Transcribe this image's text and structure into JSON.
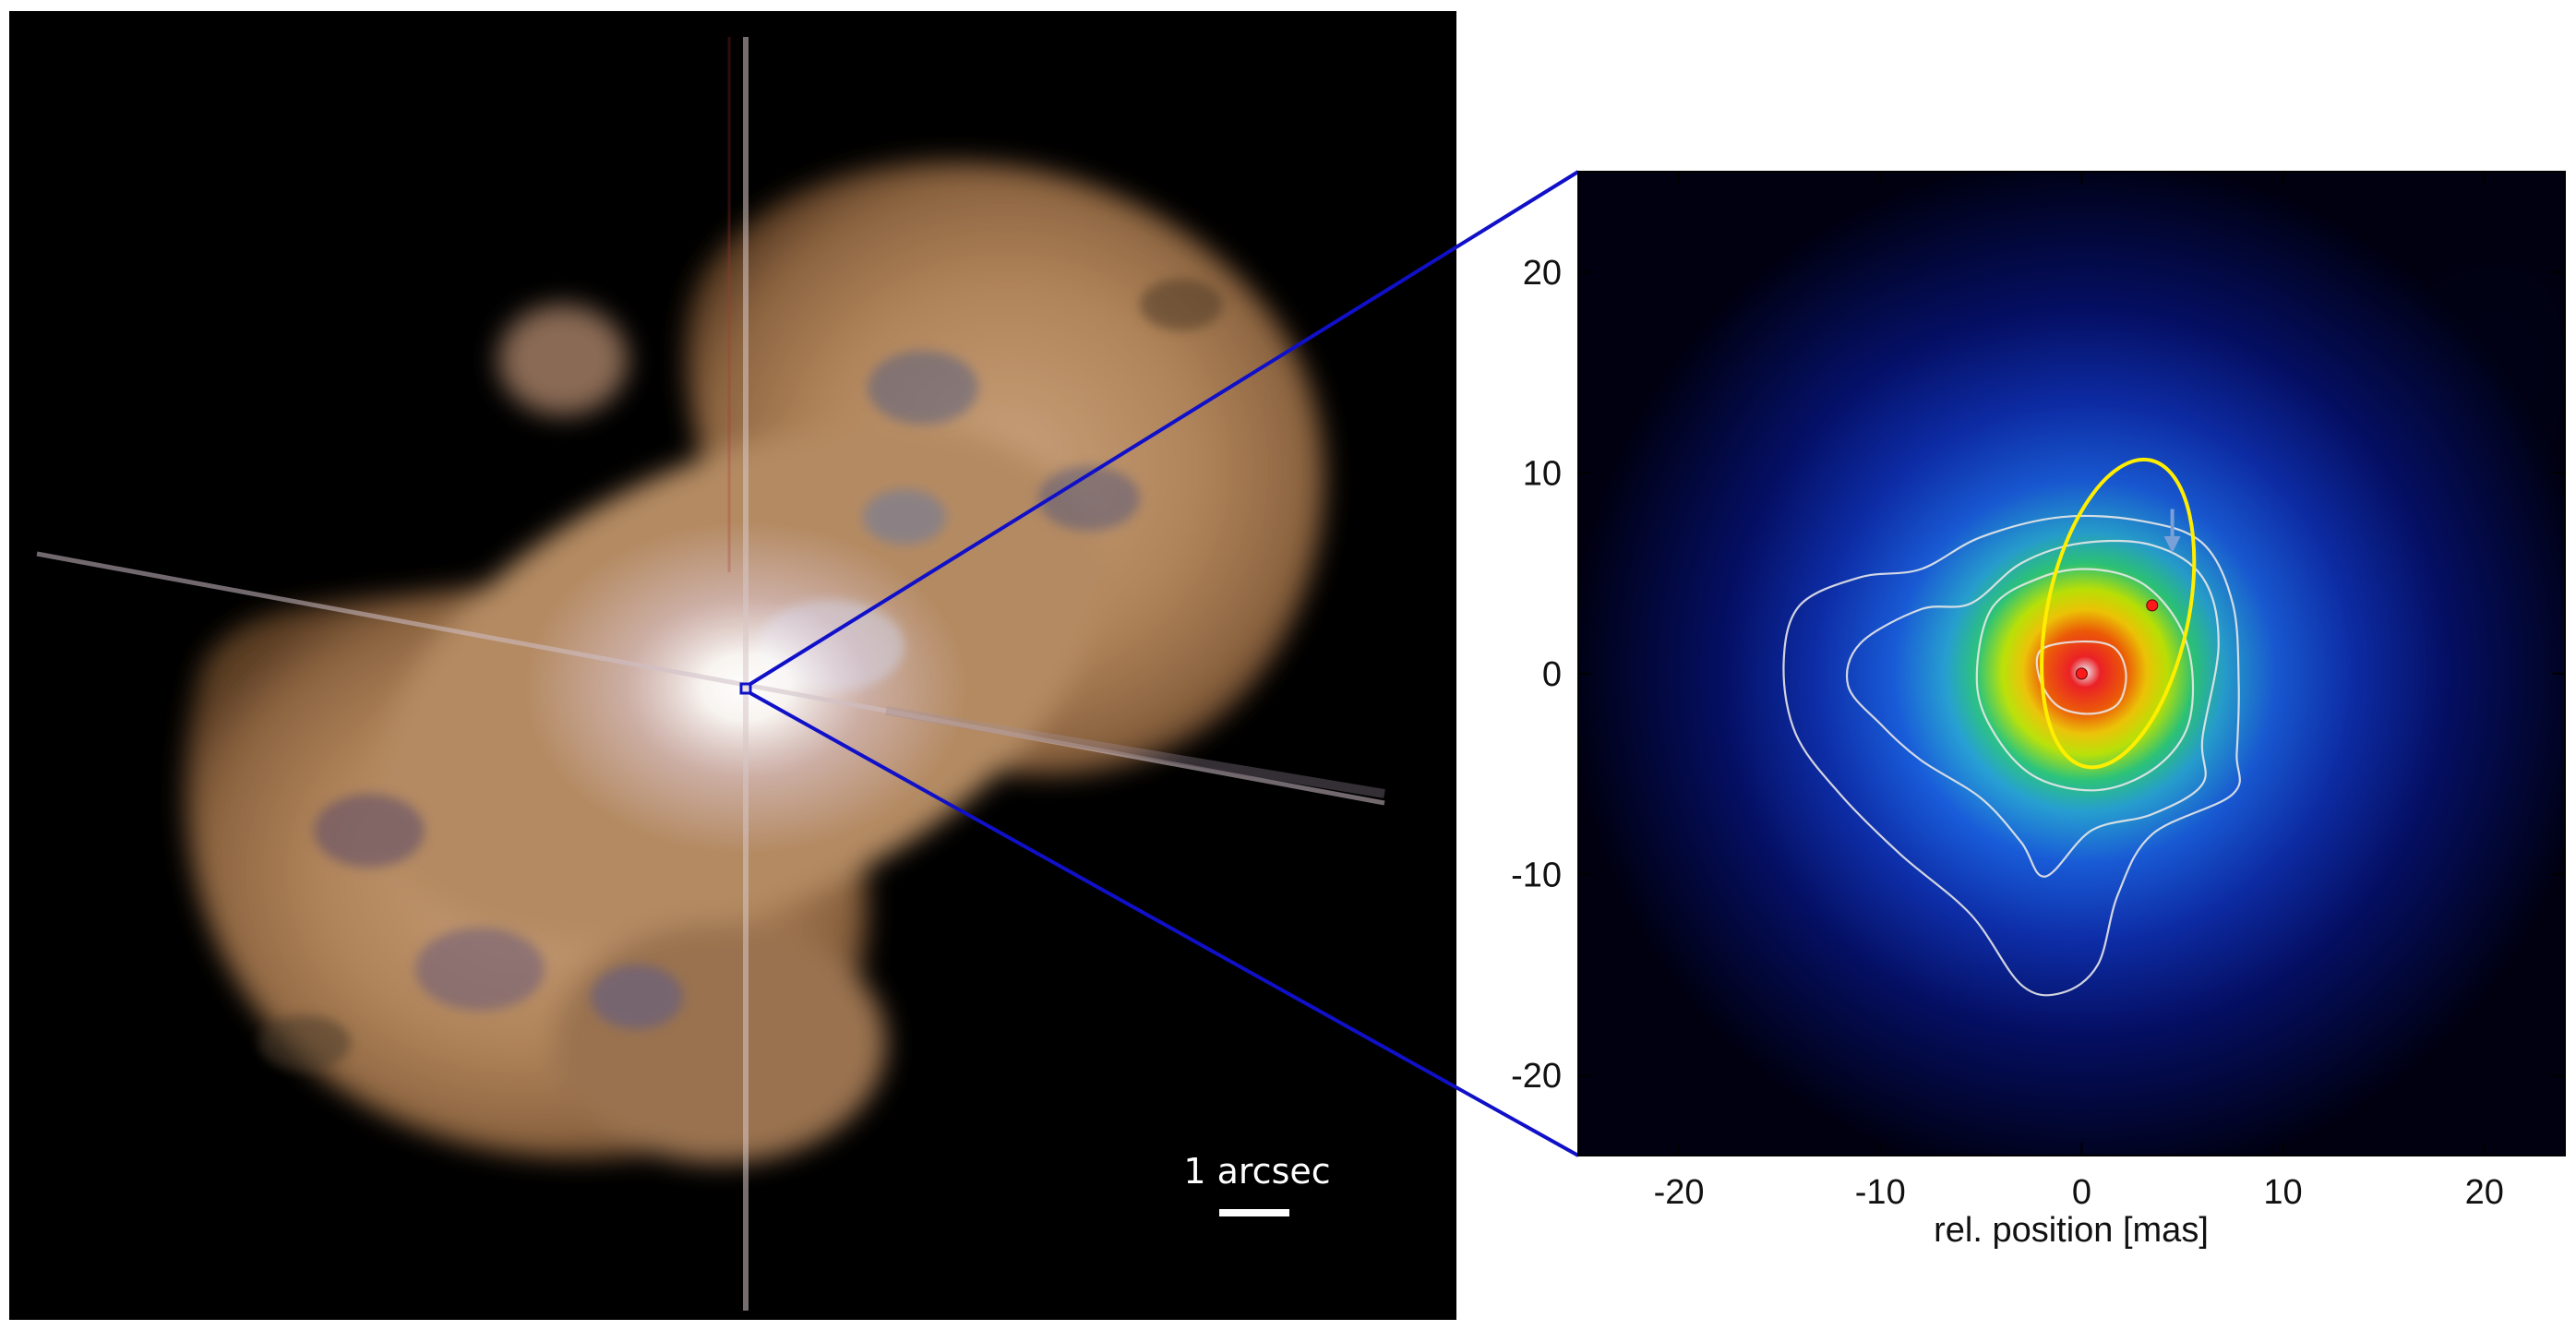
{
  "left_panel": {
    "scale_bar_label": "1 arcsec",
    "background_color": "#000000",
    "connector_color": "#1010c8"
  },
  "right_panel": {
    "x_axis_label": "rel. position [mas]",
    "x_ticks": [
      -20,
      -10,
      0,
      10,
      20
    ],
    "y_ticks": [
      20,
      10,
      0,
      -10,
      -20
    ],
    "x_range": [
      -25,
      24
    ],
    "y_range": [
      -24,
      25
    ],
    "colormap": [
      "#000010",
      "#001a9a",
      "#1a5fe0",
      "#29a8d8",
      "#2fd07a",
      "#c8f000",
      "#ffd000",
      "#ff6000",
      "#ff1010",
      "#ffffff"
    ],
    "ellipse_color": "#ffee00",
    "contour_color": "#e8e8e8",
    "marker_color": "#ff1a1a",
    "arrow_color": "#7aa0d8"
  },
  "chart_data": {
    "type": "heatmap",
    "xlabel": "rel. position [mas]",
    "ylabel": "",
    "xlim": [
      -25,
      24
    ],
    "ylim": [
      -24,
      25
    ],
    "x_ticks": [
      -20,
      -10,
      0,
      10,
      20
    ],
    "y_ticks": [
      -20,
      -10,
      0,
      10,
      20
    ],
    "peak": [
      0,
      0
    ],
    "orbit_ellipse": {
      "center": [
        1.8,
        3.0
      ],
      "semi_x": 3.5,
      "semi_y": 7.8,
      "rotation_deg": -12
    },
    "markers": [
      {
        "x": 0,
        "y": 0
      },
      {
        "x": 3.5,
        "y": 3.4
      }
    ],
    "arrow": {
      "x": 4.5,
      "y_from": 8.2,
      "y_to": 6.2
    },
    "contours": [
      [
        [
          -2,
          1.2
        ],
        [
          0,
          1.6
        ],
        [
          1.6,
          1.3
        ],
        [
          2.2,
          0
        ],
        [
          1.8,
          -1.5
        ],
        [
          0.4,
          -2
        ],
        [
          -1.2,
          -1.6
        ],
        [
          -2.1,
          -0.2
        ]
      ],
      [
        [
          -4.5,
          3.2
        ],
        [
          -2,
          4.8
        ],
        [
          0.5,
          5.2
        ],
        [
          3,
          4.5
        ],
        [
          4.8,
          2.5
        ],
        [
          5.5,
          0
        ],
        [
          5.2,
          -2.8
        ],
        [
          3.5,
          -4.8
        ],
        [
          0.8,
          -5.8
        ],
        [
          -2.2,
          -5.2
        ],
        [
          -4.2,
          -3.2
        ],
        [
          -5.2,
          -0.5
        ]
      ],
      [
        [
          -11,
          1.5
        ],
        [
          -8,
          3.2
        ],
        [
          -5.5,
          3.5
        ],
        [
          -3,
          5.5
        ],
        [
          0,
          6.5
        ],
        [
          3.5,
          6.4
        ],
        [
          6,
          4.8
        ],
        [
          6.8,
          1.5
        ],
        [
          6,
          -3.2
        ],
        [
          6,
          -5.5
        ],
        [
          3.5,
          -7
        ],
        [
          0.5,
          -7.8
        ],
        [
          -1.8,
          -10.1
        ],
        [
          -3,
          -8.4
        ],
        [
          -5,
          -6.2
        ],
        [
          -8,
          -4.3
        ],
        [
          -10,
          -2.5
        ],
        [
          -11.6,
          -0.6
        ]
      ],
      [
        [
          -14,
          3.4
        ],
        [
          -11,
          4.8
        ],
        [
          -8,
          5.2
        ],
        [
          -5,
          6.8
        ],
        [
          -1,
          7.8
        ],
        [
          3,
          7.6
        ],
        [
          6,
          6.5
        ],
        [
          7.5,
          3.5
        ],
        [
          7.8,
          -0.5
        ],
        [
          7.7,
          -4
        ],
        [
          7.5,
          -6
        ],
        [
          3.5,
          -8
        ],
        [
          1.8,
          -11
        ],
        [
          0.8,
          -14.5
        ],
        [
          -1,
          -15.9
        ],
        [
          -3,
          -15.5
        ],
        [
          -5.5,
          -12
        ],
        [
          -9,
          -9
        ],
        [
          -12,
          -6
        ],
        [
          -14.2,
          -3
        ],
        [
          -14.8,
          0.5
        ]
      ]
    ]
  }
}
